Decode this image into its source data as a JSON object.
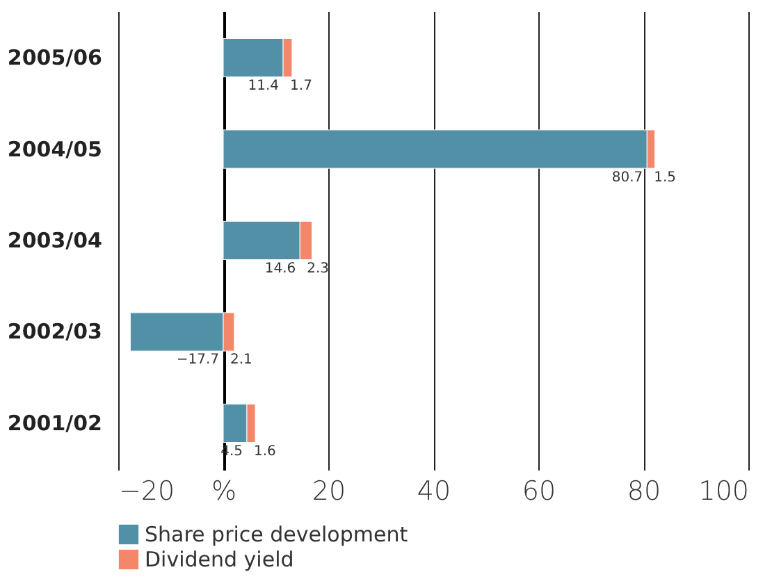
{
  "chart_data": {
    "type": "bar",
    "orientation": "horizontal",
    "stacked": true,
    "categories": [
      "2005/06",
      "2004/05",
      "2003/04",
      "2002/03",
      "2001/02"
    ],
    "series": [
      {
        "name": "Share price development",
        "color": "#5290a8",
        "values": [
          11.4,
          80.7,
          14.6,
          -17.7,
          4.5
        ]
      },
      {
        "name": "Dividend yield",
        "color": "#f4866a",
        "values": [
          1.7,
          1.5,
          2.3,
          2.1,
          1.6
        ]
      }
    ],
    "xlim": [
      -20,
      100
    ],
    "xticks": [
      -20,
      {
        "value": 0,
        "label": "%"
      },
      20,
      40,
      60,
      80,
      100
    ],
    "grid": "x",
    "legend": "bottom",
    "data_labels": true
  }
}
